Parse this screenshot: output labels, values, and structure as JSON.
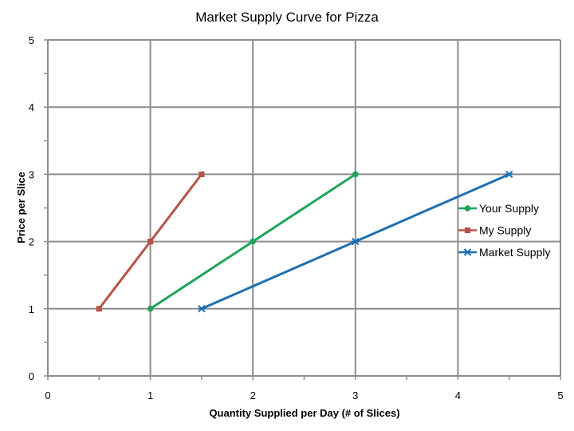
{
  "chart_data": {
    "type": "line",
    "title": "Market Supply Curve for Pizza",
    "xlabel": "Quantity Supplied per Day (# of Slices)",
    "ylabel": "Price per Slice",
    "xlim": [
      0,
      5
    ],
    "ylim": [
      0,
      5
    ],
    "xticks": [
      "0",
      "1",
      "2",
      "3",
      "4",
      "5"
    ],
    "yticks": [
      "0",
      "1",
      "2",
      "3",
      "4",
      "5"
    ],
    "grid": true,
    "smooth": true,
    "legend": "right",
    "series": [
      {
        "name": "Your Supply",
        "color": "#1fa35a",
        "marker": "circle",
        "points": [
          [
            1,
            1
          ],
          [
            2,
            2
          ],
          [
            3,
            3
          ]
        ]
      },
      {
        "name": "My Supply",
        "color": "#b5534a",
        "marker": "square",
        "points": [
          [
            0.5,
            1
          ],
          [
            1,
            2
          ],
          [
            1.5,
            3
          ]
        ]
      },
      {
        "name": "Market Supply",
        "color": "#1f6fb0",
        "marker": "star",
        "points": [
          [
            1.5,
            1
          ],
          [
            3,
            2
          ],
          [
            4.5,
            3
          ]
        ]
      }
    ]
  }
}
